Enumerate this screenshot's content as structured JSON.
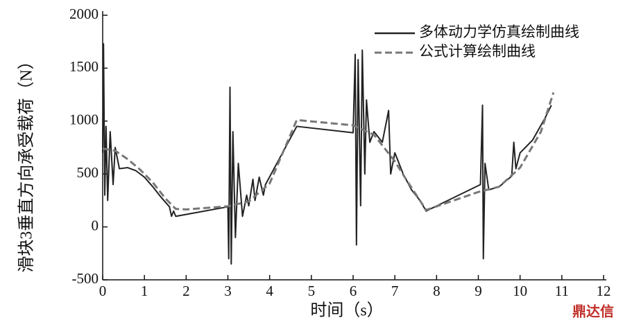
{
  "chart_data": {
    "type": "line",
    "x_label": "时间（s）",
    "y_label": "滑块3垂直方向承受载荷（N）",
    "watermark": "鼎达信",
    "legend": "upper right",
    "xlim": [
      0,
      12
    ],
    "xticks": [
      0,
      1,
      2,
      3,
      4,
      5,
      6,
      7,
      8,
      9,
      10,
      11,
      12
    ],
    "ylim": [
      -500,
      2000
    ],
    "yticks": [
      -500,
      0,
      500,
      1000,
      1500,
      2000
    ],
    "series": [
      {
        "name": "多体动力学仿真绘制曲线",
        "color": "#222222",
        "dashed": false,
        "x": [
          0,
          0.02,
          0.05,
          0.08,
          0.12,
          0.18,
          0.25,
          0.3,
          0.4,
          0.6,
          0.8,
          1.0,
          1.2,
          1.4,
          1.6,
          1.65,
          1.7,
          1.75,
          3.0,
          3.02,
          3.05,
          3.08,
          3.12,
          3.18,
          3.25,
          3.35,
          3.45,
          3.5,
          3.6,
          3.65,
          3.75,
          3.85,
          3.9,
          4.65,
          6.0,
          6.05,
          6.08,
          6.12,
          6.18,
          6.22,
          6.28,
          6.32,
          6.4,
          6.5,
          6.7,
          6.85,
          6.9,
          7.0,
          7.2,
          7.4,
          7.6,
          7.75,
          9.05,
          9.1,
          9.12,
          9.16,
          9.25,
          9.5,
          9.8,
          9.85,
          9.9,
          10.0,
          10.3,
          10.6,
          10.75
        ],
        "values": [
          700,
          1730,
          300,
          950,
          250,
          900,
          400,
          750,
          550,
          560,
          530,
          470,
          380,
          280,
          190,
          100,
          150,
          100,
          190,
          -300,
          1320,
          -350,
          900,
          -100,
          600,
          100,
          300,
          200,
          450,
          250,
          470,
          300,
          400,
          950,
          890,
          1630,
          -170,
          1580,
          200,
          1670,
          500,
          1200,
          800,
          900,
          800,
          1100,
          500,
          700,
          500,
          350,
          250,
          150,
          400,
          1150,
          -300,
          600,
          350,
          380,
          480,
          800,
          550,
          700,
          820,
          1030,
          1150
        ]
      },
      {
        "name": "公式计算绘制曲线",
        "color": "#777777",
        "dashed": true,
        "x": [
          0,
          0.3,
          0.6,
          0.9,
          1.2,
          1.5,
          1.75,
          2.0,
          3.0,
          3.5,
          4.0,
          4.65,
          6.0,
          6.5,
          7.0,
          7.3,
          7.75,
          9.0,
          9.5,
          10.0,
          10.5,
          10.8
        ],
        "values": [
          740,
          720,
          640,
          540,
          420,
          270,
          170,
          165,
          195,
          240,
          410,
          1010,
          960,
          870,
          620,
          430,
          160,
          330,
          380,
          560,
          900,
          1270
        ]
      }
    ]
  }
}
